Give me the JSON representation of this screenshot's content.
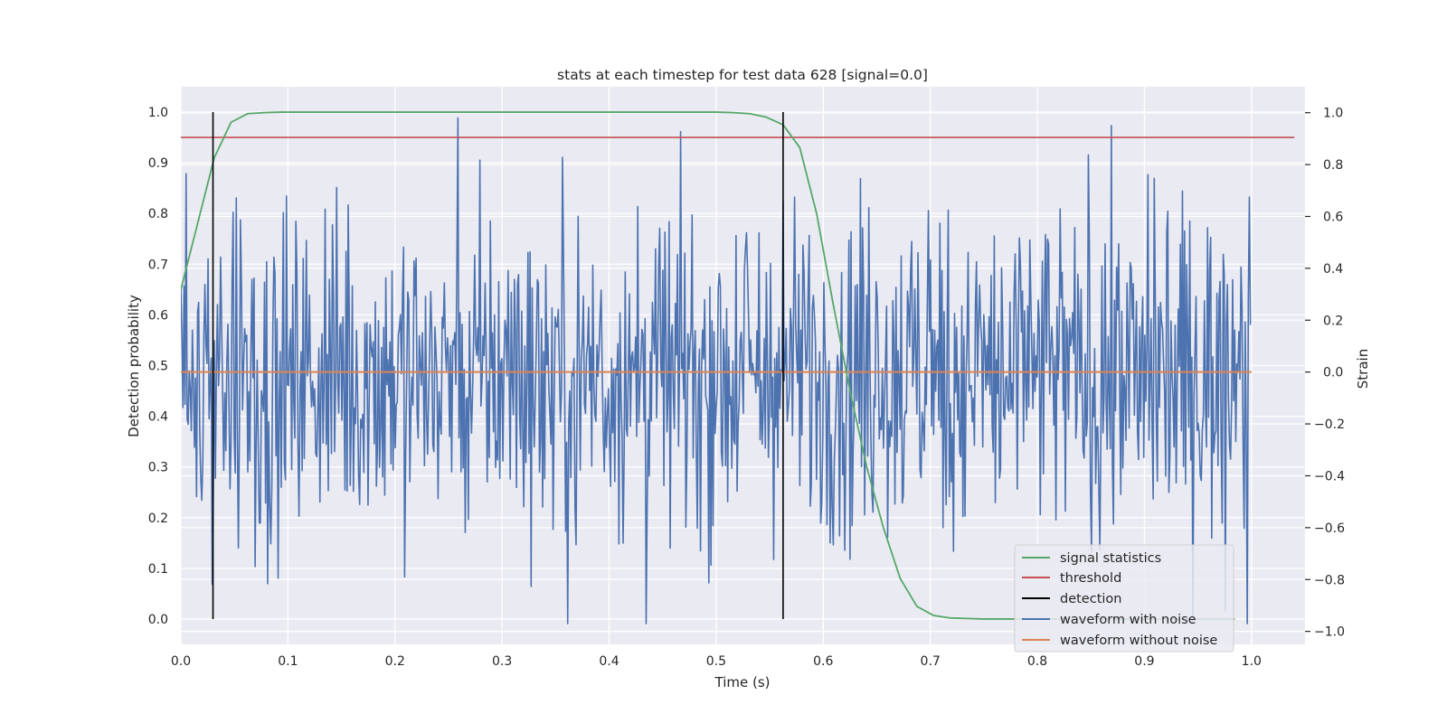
{
  "chart_data": {
    "type": "line",
    "title": "stats at each timestep for test data 628 [signal=0.0]",
    "xlabel": "Time (s)",
    "ylabel": "Detection probability",
    "y2label": "Strain",
    "xlim": [
      0.0,
      1.05
    ],
    "ylim": [
      -0.05,
      1.05
    ],
    "y2lim": [
      -1.05,
      1.1
    ],
    "xticks": [
      0.0,
      0.1,
      0.2,
      0.3,
      0.4,
      0.5,
      0.6,
      0.7,
      0.8,
      0.9,
      1.0
    ],
    "yticks": [
      0.0,
      0.1,
      0.2,
      0.3,
      0.4,
      0.5,
      0.6,
      0.7,
      0.8,
      0.9,
      1.0
    ],
    "y2ticks": [
      -1.0,
      -0.8,
      -0.6,
      -0.4,
      -0.2,
      0.0,
      0.2,
      0.4,
      0.6,
      0.8,
      1.0
    ],
    "grid": true,
    "legend_position": "lower-right",
    "colors": {
      "signal": "#55a868",
      "threshold": "#c44e52",
      "detection": "#000000",
      "noisy": "#4c72b0",
      "clean": "#dd8452",
      "background": "#eaeaf2"
    },
    "series": [
      {
        "name": "signal statistics",
        "axis": "left",
        "x": [
          0.0,
          0.0156,
          0.0312,
          0.0469,
          0.0625,
          0.0781,
          0.0938,
          0.125,
          0.2,
          0.3,
          0.4,
          0.5,
          0.5156,
          0.5312,
          0.5469,
          0.5625,
          0.5781,
          0.5938,
          0.6094,
          0.625,
          0.6406,
          0.6562,
          0.6719,
          0.6875,
          0.7031,
          0.7188,
          0.7344,
          0.75,
          0.8,
          0.9,
          0.9531,
          0.9844
        ],
        "y": [
          0.65,
          0.78,
          0.91,
          0.98,
          0.997,
          0.999,
          1.0,
          1.0,
          1.0,
          1.0,
          1.0,
          1.0,
          0.999,
          0.997,
          0.99,
          0.975,
          0.93,
          0.8,
          0.62,
          0.45,
          0.3,
          0.18,
          0.08,
          0.025,
          0.007,
          0.002,
          0.001,
          0.0,
          0.0,
          0.0,
          0.0,
          0.0
        ]
      },
      {
        "name": "threshold",
        "axis": "left",
        "x": [
          0.0,
          1.04
        ],
        "y": [
          0.95,
          0.95
        ]
      },
      {
        "name": "detection",
        "axis": "left",
        "x": [
          0.03,
          0.5625
        ],
        "y": [
          1.0,
          1.0
        ]
      },
      {
        "name": "waveform with noise",
        "axis": "right",
        "n_points": 1024,
        "x_range": [
          0.0,
          0.999
        ],
        "amplitude_range": [
          -0.97,
          0.98
        ]
      },
      {
        "name": "waveform without noise",
        "axis": "right",
        "x": [
          0.0,
          1.0
        ],
        "y": [
          0.0,
          0.0
        ]
      }
    ]
  }
}
